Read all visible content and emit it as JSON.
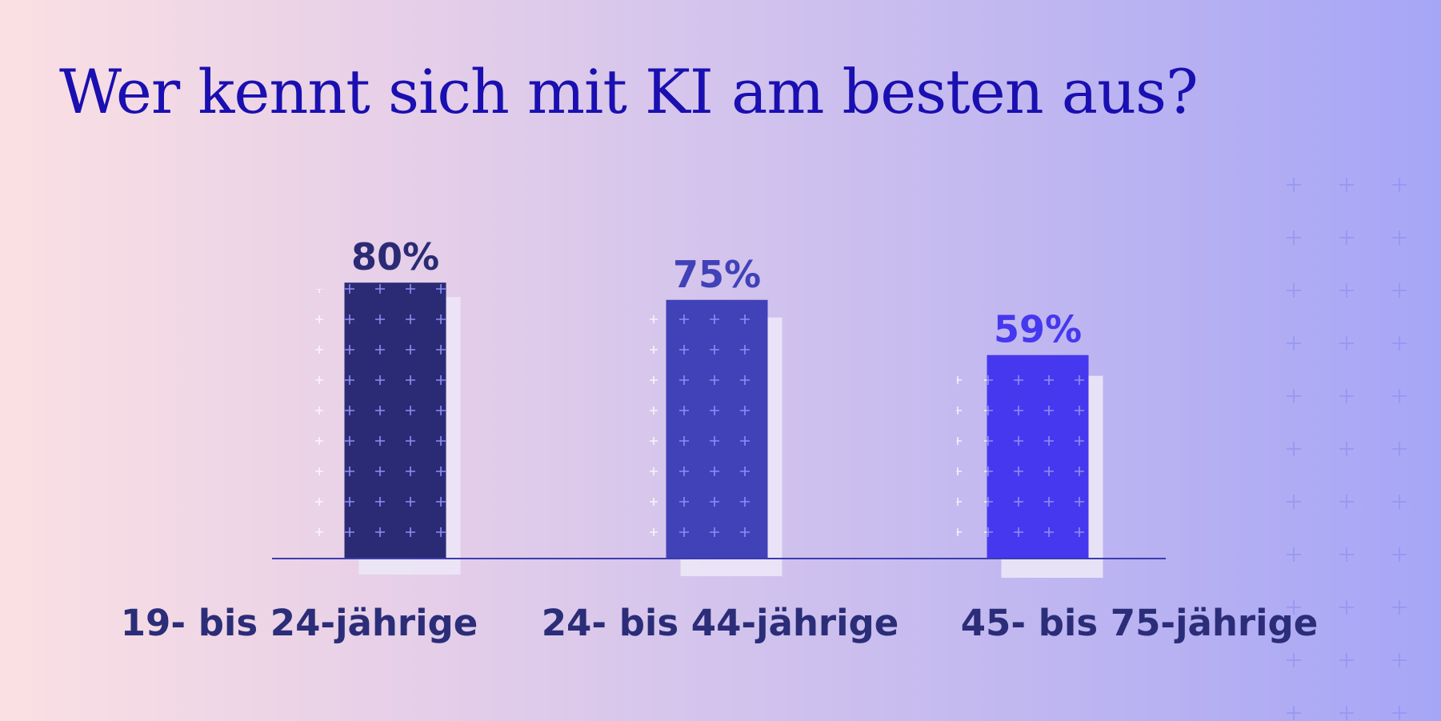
{
  "title": "Wer kennt sich mit KI am besten aus?",
  "colors": {
    "title": "#1a0fb0",
    "axis": "#3c3cb0",
    "shadow": "#ece7f7",
    "category_label": "#2b2d78"
  },
  "chart_data": {
    "type": "bar",
    "title": "Wer kennt sich mit KI am besten aus?",
    "categories": [
      "19- bis 24-jährige",
      "24- bis 44-jährige",
      "45- bis 75-jährige"
    ],
    "values": [
      80,
      75,
      59
    ],
    "value_labels": [
      "80%",
      "75%",
      "59%"
    ],
    "bar_colors": [
      "#2b2b75",
      "#4141b8",
      "#4638ee"
    ],
    "label_colors": [
      "#2b2b75",
      "#4141b8",
      "#4638ee"
    ],
    "xlabel": "",
    "ylabel": "",
    "unit": "%",
    "ylim": [
      0,
      100
    ],
    "grid": false,
    "legend": "none"
  }
}
